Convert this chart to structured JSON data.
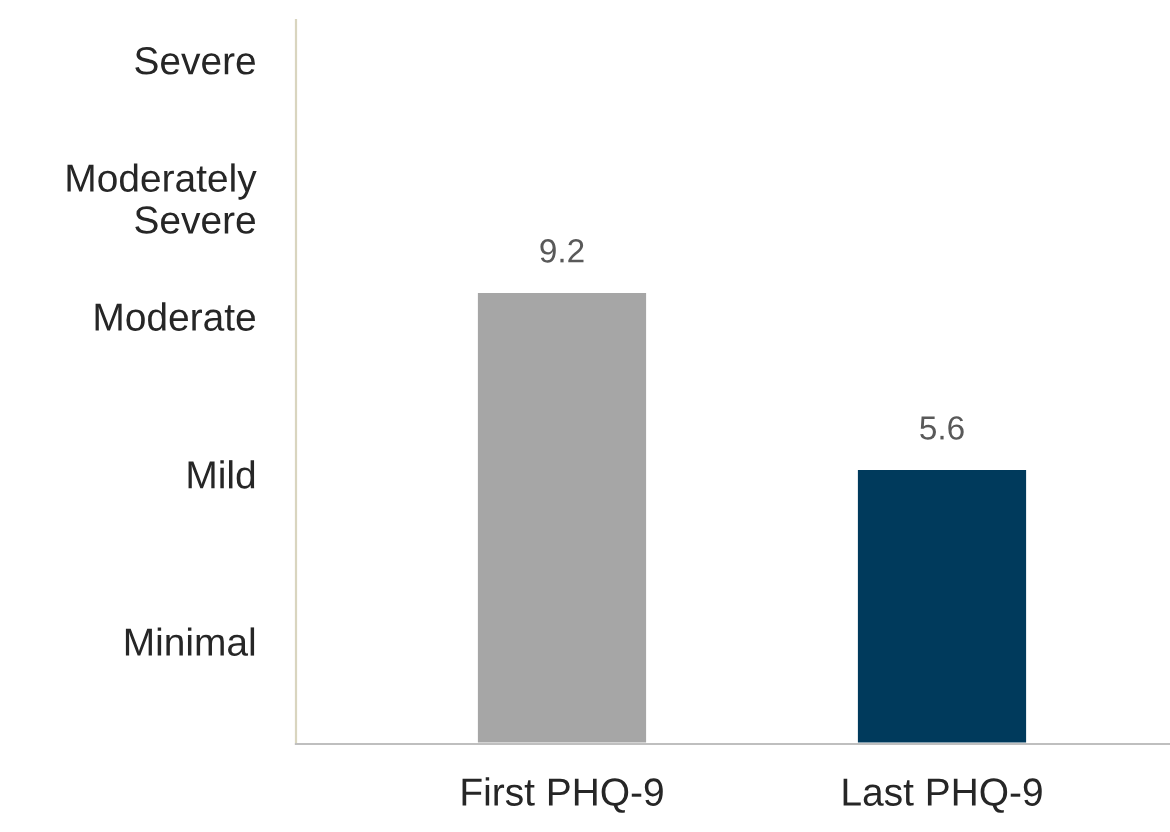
{
  "chart_data": {
    "type": "bar",
    "categories": [
      "First PHQ-9",
      "Last PHQ-9"
    ],
    "values": [
      9.2,
      5.6
    ],
    "colors": [
      "#a6a6a6",
      "#003a5c"
    ],
    "annotations": [
      "Minimal",
      "Mild",
      "Moderate",
      "Moderately\nSevere",
      "Severe"
    ],
    "data_labels": true,
    "grid": false
  }
}
